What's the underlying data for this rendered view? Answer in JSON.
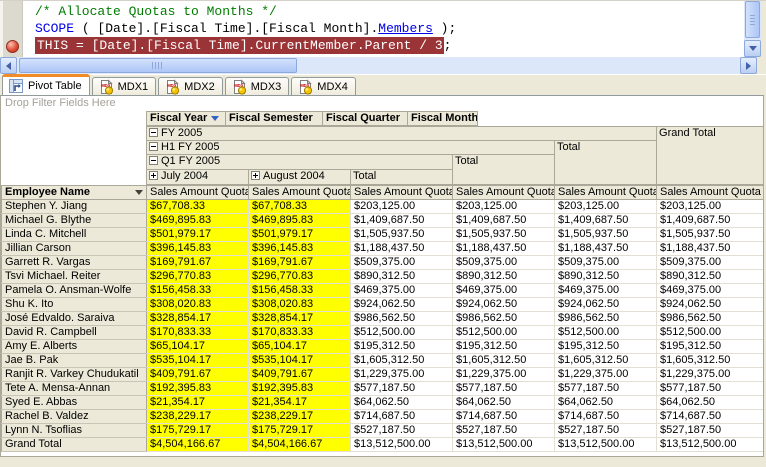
{
  "colors": {
    "breakpoint_line_bg": "#9A3437",
    "breakpoint_dot_red": "#D8402E",
    "comment_green": "#007D00",
    "keyword_blue": "#0000E8",
    "highlight_yellow": "#FFFF00",
    "chrome_beige": "#ECE9D8",
    "header_border_gray": "#ACA899",
    "scrollbar_blue": "#ACC6F6",
    "active_tab_accent_orange": "#F08B26",
    "fiscal_year_arrow_blue": "#3163C5"
  },
  "code_editor": {
    "lines": [
      {
        "breakpoint": false,
        "segments": [
          {
            "style": "comment",
            "text": "/* Allocate Quotas to Months */"
          }
        ]
      },
      {
        "breakpoint": false,
        "segments": [
          {
            "style": "keyword",
            "text": "SCOPE"
          },
          {
            "style": "plain",
            "text": " ( [Date].[Fiscal Time].[Fiscal Month]."
          },
          {
            "style": "link",
            "text": "Members"
          },
          {
            "style": "plain",
            "text": " );"
          }
        ]
      },
      {
        "breakpoint": true,
        "segments": [
          {
            "style": "breakpoint",
            "text": "THIS = [Date].[Fiscal Time].CurrentMember.Parent / 3"
          },
          {
            "style": "plain",
            "text": ";"
          }
        ]
      }
    ]
  },
  "tabs": [
    {
      "label": "Pivot Table",
      "icon": "pivot-table-icon",
      "active": true
    },
    {
      "label": "MDX1",
      "icon": "mdx-document-icon",
      "active": false
    },
    {
      "label": "MDX2",
      "icon": "mdx-document-icon",
      "active": false
    },
    {
      "label": "MDX3",
      "icon": "mdx-document-icon",
      "active": false
    },
    {
      "label": "MDX4",
      "icon": "mdx-document-icon",
      "active": false
    }
  ],
  "pivot": {
    "filter_hint": "Drop Filter Fields Here",
    "column_fields": [
      {
        "label": "Fiscal Year",
        "has_dropdown": true
      },
      {
        "label": "Fiscal Semester",
        "has_dropdown": false
      },
      {
        "label": "Fiscal Quarter",
        "has_dropdown": false
      },
      {
        "label": "Fiscal Month",
        "has_dropdown": false
      }
    ],
    "row_field": {
      "label": "Employee Name",
      "has_dropdown": true
    },
    "measure_header": "Sales Amount Quota",
    "column_tree": {
      "year": {
        "label": "FY 2005",
        "state": "expanded"
      },
      "semester": {
        "label": "H1 FY 2005",
        "state": "expanded"
      },
      "quarter": {
        "label": "Q1 FY 2005",
        "state": "expanded"
      },
      "months": [
        {
          "label": "July 2004",
          "state": "collapsed"
        },
        {
          "label": "August 2004",
          "state": "collapsed"
        }
      ],
      "month_total_label": "Total",
      "quarter_total_label": "Total",
      "semester_total_label": "Total",
      "grand_total_label": "Grand Total"
    },
    "rows": [
      {
        "name": "Stephen Y. Jiang",
        "month_value": "$67,708.33",
        "total_value": "$203,125.00"
      },
      {
        "name": "Michael G. Blythe",
        "month_value": "$469,895.83",
        "total_value": "$1,409,687.50"
      },
      {
        "name": "Linda C. Mitchell",
        "month_value": "$501,979.17",
        "total_value": "$1,505,937.50"
      },
      {
        "name": "Jillian Carson",
        "month_value": "$396,145.83",
        "total_value": "$1,188,437.50"
      },
      {
        "name": "Garrett R. Vargas",
        "month_value": "$169,791.67",
        "total_value": "$509,375.00"
      },
      {
        "name": "Tsvi Michael. Reiter",
        "month_value": "$296,770.83",
        "total_value": "$890,312.50"
      },
      {
        "name": "Pamela O. Ansman-Wolfe",
        "month_value": "$156,458.33",
        "total_value": "$469,375.00"
      },
      {
        "name": "Shu K. Ito",
        "month_value": "$308,020.83",
        "total_value": "$924,062.50"
      },
      {
        "name": "José Edvaldo. Saraiva",
        "month_value": "$328,854.17",
        "total_value": "$986,562.50"
      },
      {
        "name": "David R. Campbell",
        "month_value": "$170,833.33",
        "total_value": "$512,500.00"
      },
      {
        "name": "Amy E. Alberts",
        "month_value": "$65,104.17",
        "total_value": "$195,312.50"
      },
      {
        "name": "Jae B. Pak",
        "month_value": "$535,104.17",
        "total_value": "$1,605,312.50"
      },
      {
        "name": "Ranjit R. Varkey Chudukatil",
        "month_value": "$409,791.67",
        "total_value": "$1,229,375.00"
      },
      {
        "name": "Tete A. Mensa-Annan",
        "month_value": "$192,395.83",
        "total_value": "$577,187.50"
      },
      {
        "name": "Syed E. Abbas",
        "month_value": "$21,354.17",
        "total_value": "$64,062.50"
      },
      {
        "name": "Rachel B. Valdez",
        "month_value": "$238,229.17",
        "total_value": "$714,687.50"
      },
      {
        "name": "Lynn N. Tsoflias",
        "month_value": "$175,729.17",
        "total_value": "$527,187.50"
      },
      {
        "name": "Grand Total",
        "month_value": "$4,504,166.67",
        "total_value": "$13,512,500.00"
      }
    ]
  }
}
